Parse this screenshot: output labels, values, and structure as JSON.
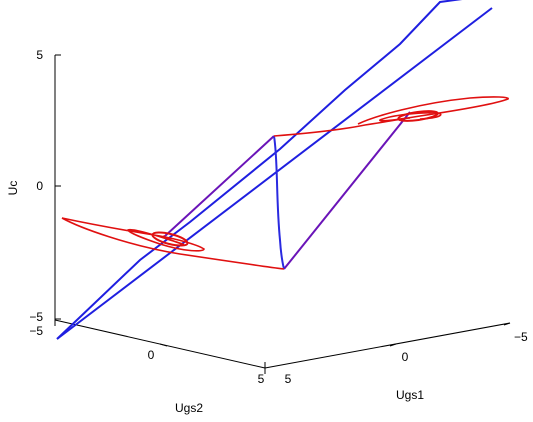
{
  "chart_data": {
    "type": "line3d",
    "title": "",
    "axes": {
      "x": {
        "label": "Ugs1",
        "ticks": [
          "5",
          "0",
          "−5"
        ],
        "range": [
          -5,
          5
        ]
      },
      "y": {
        "label": "Ugs2",
        "ticks": [
          "−5",
          "0",
          "5"
        ],
        "range": [
          -5,
          5
        ]
      },
      "z": {
        "label": "Uc",
        "ticks": [
          "−5",
          "0",
          "5"
        ],
        "range": [
          -5,
          5
        ]
      }
    },
    "grid": false,
    "legend": "none",
    "series": [
      {
        "kind": "line",
        "color": "#1f1fe0",
        "description_points": "straight diagonal line through the state space",
        "points": [
          {
            "ugs1": -5.2,
            "ugs2": -4.0,
            "uc": -6.6
          },
          {
            "ugs1": 5.2,
            "ugs2": 4.0,
            "uc": 6.6
          }
        ]
      },
      {
        "kind": "attractor",
        "color": "#e01010",
        "points": [
          {
            "ugs1": -4.5,
            "ugs2": 4.5,
            "uc": 1.2
          },
          {
            "ugs1": -1.0,
            "ugs2": 1.0,
            "uc": 0.8
          },
          {
            "ugs1": -0.8,
            "ugs2": 0.8,
            "uc": 0.5
          },
          {
            "ugs1": 0.2,
            "ugs2": -0.5,
            "uc": -0.3
          },
          {
            "ugs1": 1.2,
            "ugs2": -1.2,
            "uc": -0.6
          },
          {
            "ugs1": 3.6,
            "ugs2": -2.6,
            "uc": -1.4
          }
        ]
      }
    ],
    "colors": {
      "axis": "#000000",
      "straight_line": "#1f1fe0",
      "trajectory": "#e01010",
      "trajectory_transition": "#6a14b8"
    }
  }
}
